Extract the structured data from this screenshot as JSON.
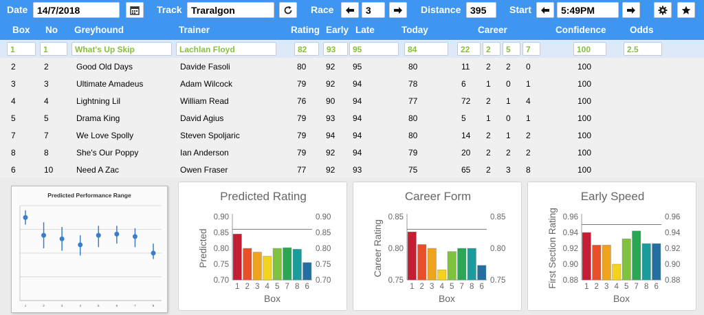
{
  "topbar": {
    "date_label": "Date",
    "date_value": "14/7/2018",
    "track_label": "Track",
    "track_value": "Traralgon",
    "race_label": "Race",
    "race_value": "3",
    "distance_label": "Distance",
    "distance_value": "395",
    "start_label": "Start",
    "start_value": "5:49PM",
    "icons": [
      "calendar-icon",
      "refresh-icon",
      "arrow-left-icon",
      "arrow-right-icon",
      "gear-icon",
      "star-icon"
    ]
  },
  "table": {
    "headers": [
      "Box",
      "No",
      "Greyhound",
      "Trainer",
      "Rating",
      "Early",
      "Late",
      "Today",
      "Career",
      "Confidence",
      "Odds"
    ],
    "selected": {
      "box": "1",
      "no": "1",
      "greyhound": "What's Up Skip",
      "trainer": "Lachlan Floyd",
      "rating": "82",
      "early": "93",
      "late": "95",
      "today": "84",
      "c1": "22",
      "c2": "2",
      "c3": "5",
      "c4": "7",
      "confidence": "100",
      "odds": "2.5"
    },
    "rows": [
      {
        "box": "2",
        "no": "2",
        "greyhound": "Good Old Days",
        "trainer": "Davide Fasoli",
        "rating": "80",
        "early": "92",
        "late": "95",
        "today": "80",
        "c1": "11",
        "c2": "2",
        "c3": "2",
        "c4": "0",
        "confidence": "100"
      },
      {
        "box": "3",
        "no": "3",
        "greyhound": "Ultimate Amadeus",
        "trainer": "Adam Wilcock",
        "rating": "79",
        "early": "92",
        "late": "94",
        "today": "78",
        "c1": "6",
        "c2": "1",
        "c3": "0",
        "c4": "1",
        "confidence": "100"
      },
      {
        "box": "4",
        "no": "4",
        "greyhound": "Lightning Lil",
        "trainer": "William Read",
        "rating": "76",
        "early": "90",
        "late": "94",
        "today": "77",
        "c1": "72",
        "c2": "2",
        "c3": "1",
        "c4": "4",
        "confidence": "100"
      },
      {
        "box": "5",
        "no": "5",
        "greyhound": "Drama King",
        "trainer": "David Agius",
        "rating": "79",
        "early": "93",
        "late": "94",
        "today": "80",
        "c1": "5",
        "c2": "1",
        "c3": "0",
        "c4": "1",
        "confidence": "100"
      },
      {
        "box": "7",
        "no": "7",
        "greyhound": "We Love Spolly",
        "trainer": "Steven Spoljaric",
        "rating": "79",
        "early": "94",
        "late": "94",
        "today": "80",
        "c1": "14",
        "c2": "2",
        "c3": "1",
        "c4": "2",
        "confidence": "100"
      },
      {
        "box": "8",
        "no": "8",
        "greyhound": "She's Our Poppy",
        "trainer": "Ian Anderson",
        "rating": "79",
        "early": "92",
        "late": "94",
        "today": "79",
        "c1": "20",
        "c2": "2",
        "c3": "2",
        "c4": "2",
        "confidence": "100"
      },
      {
        "box": "6",
        "no": "10",
        "greyhound": "Need A Zac",
        "trainer": "Owen Fraser",
        "rating": "77",
        "early": "92",
        "late": "93",
        "today": "75",
        "c1": "65",
        "c2": "2",
        "c3": "3",
        "c4": "8",
        "confidence": "100"
      }
    ]
  },
  "chart_data": [
    {
      "type": "scatter",
      "title": "Predicted Performance Range",
      "x": [
        "1",
        "2",
        "3",
        "4",
        "5",
        "6",
        "7",
        "8"
      ],
      "values": [
        0.9,
        0.75,
        0.72,
        0.67,
        0.75,
        0.76,
        0.74,
        0.6
      ],
      "low": [
        0.84,
        0.64,
        0.62,
        0.58,
        0.65,
        0.68,
        0.65,
        0.55
      ],
      "high": [
        0.96,
        0.86,
        0.82,
        0.75,
        0.83,
        0.83,
        0.81,
        0.68
      ],
      "ylim": [
        0.2,
        1.0
      ],
      "grid": true,
      "colors": {
        "points": "#3a7dc8",
        "bars": "#3a7dc8"
      }
    },
    {
      "type": "bar",
      "title": "Predicted Rating",
      "categories": [
        "1",
        "2",
        "3",
        "4",
        "5",
        "7",
        "8",
        "6"
      ],
      "values": [
        0.845,
        0.8,
        0.788,
        0.775,
        0.8,
        0.802,
        0.797,
        0.755
      ],
      "xlabel": "Box",
      "ylabel": "Predicted",
      "ylim": [
        0.7,
        0.9
      ],
      "yticks": [
        "0.70",
        "0.75",
        "0.80",
        "0.85",
        "0.90"
      ],
      "reference_line": 0.86,
      "colors": [
        "#c41e35",
        "#e8502a",
        "#efa21c",
        "#f3d31d",
        "#7ec23d",
        "#2aa655",
        "#1b9c9c",
        "#246fa2"
      ]
    },
    {
      "type": "bar",
      "title": "Career Form",
      "categories": [
        "1",
        "2",
        "3",
        "4",
        "5",
        "7",
        "8",
        "6"
      ],
      "values": [
        0.826,
        0.806,
        0.8,
        0.766,
        0.795,
        0.8,
        0.8,
        0.773
      ],
      "xlabel": "Box",
      "ylabel": "Career Rating",
      "ylim": [
        0.75,
        0.85
      ],
      "yticks": [
        "0.75",
        "0.80",
        "0.85"
      ],
      "reference_line": 0.83,
      "colors": [
        "#c41e35",
        "#e8502a",
        "#efa21c",
        "#f3d31d",
        "#7ec23d",
        "#2aa655",
        "#1b9c9c",
        "#246fa2"
      ]
    },
    {
      "type": "bar",
      "title": "Early Speed",
      "categories": [
        "1",
        "2",
        "3",
        "4",
        "5",
        "7",
        "8",
        "6"
      ],
      "values": [
        0.94,
        0.924,
        0.924,
        0.9,
        0.932,
        0.942,
        0.926,
        0.926
      ],
      "xlabel": "Box",
      "ylabel": "First Section Rating",
      "ylim": [
        0.88,
        0.96
      ],
      "yticks": [
        "0.88",
        "0.90",
        "0.92",
        "0.94",
        "0.96"
      ],
      "reference_line": 0.95,
      "colors": [
        "#c41e35",
        "#e8502a",
        "#efa21c",
        "#f3d31d",
        "#7ec23d",
        "#2aa655",
        "#1b9c9c",
        "#246fa2"
      ]
    }
  ]
}
